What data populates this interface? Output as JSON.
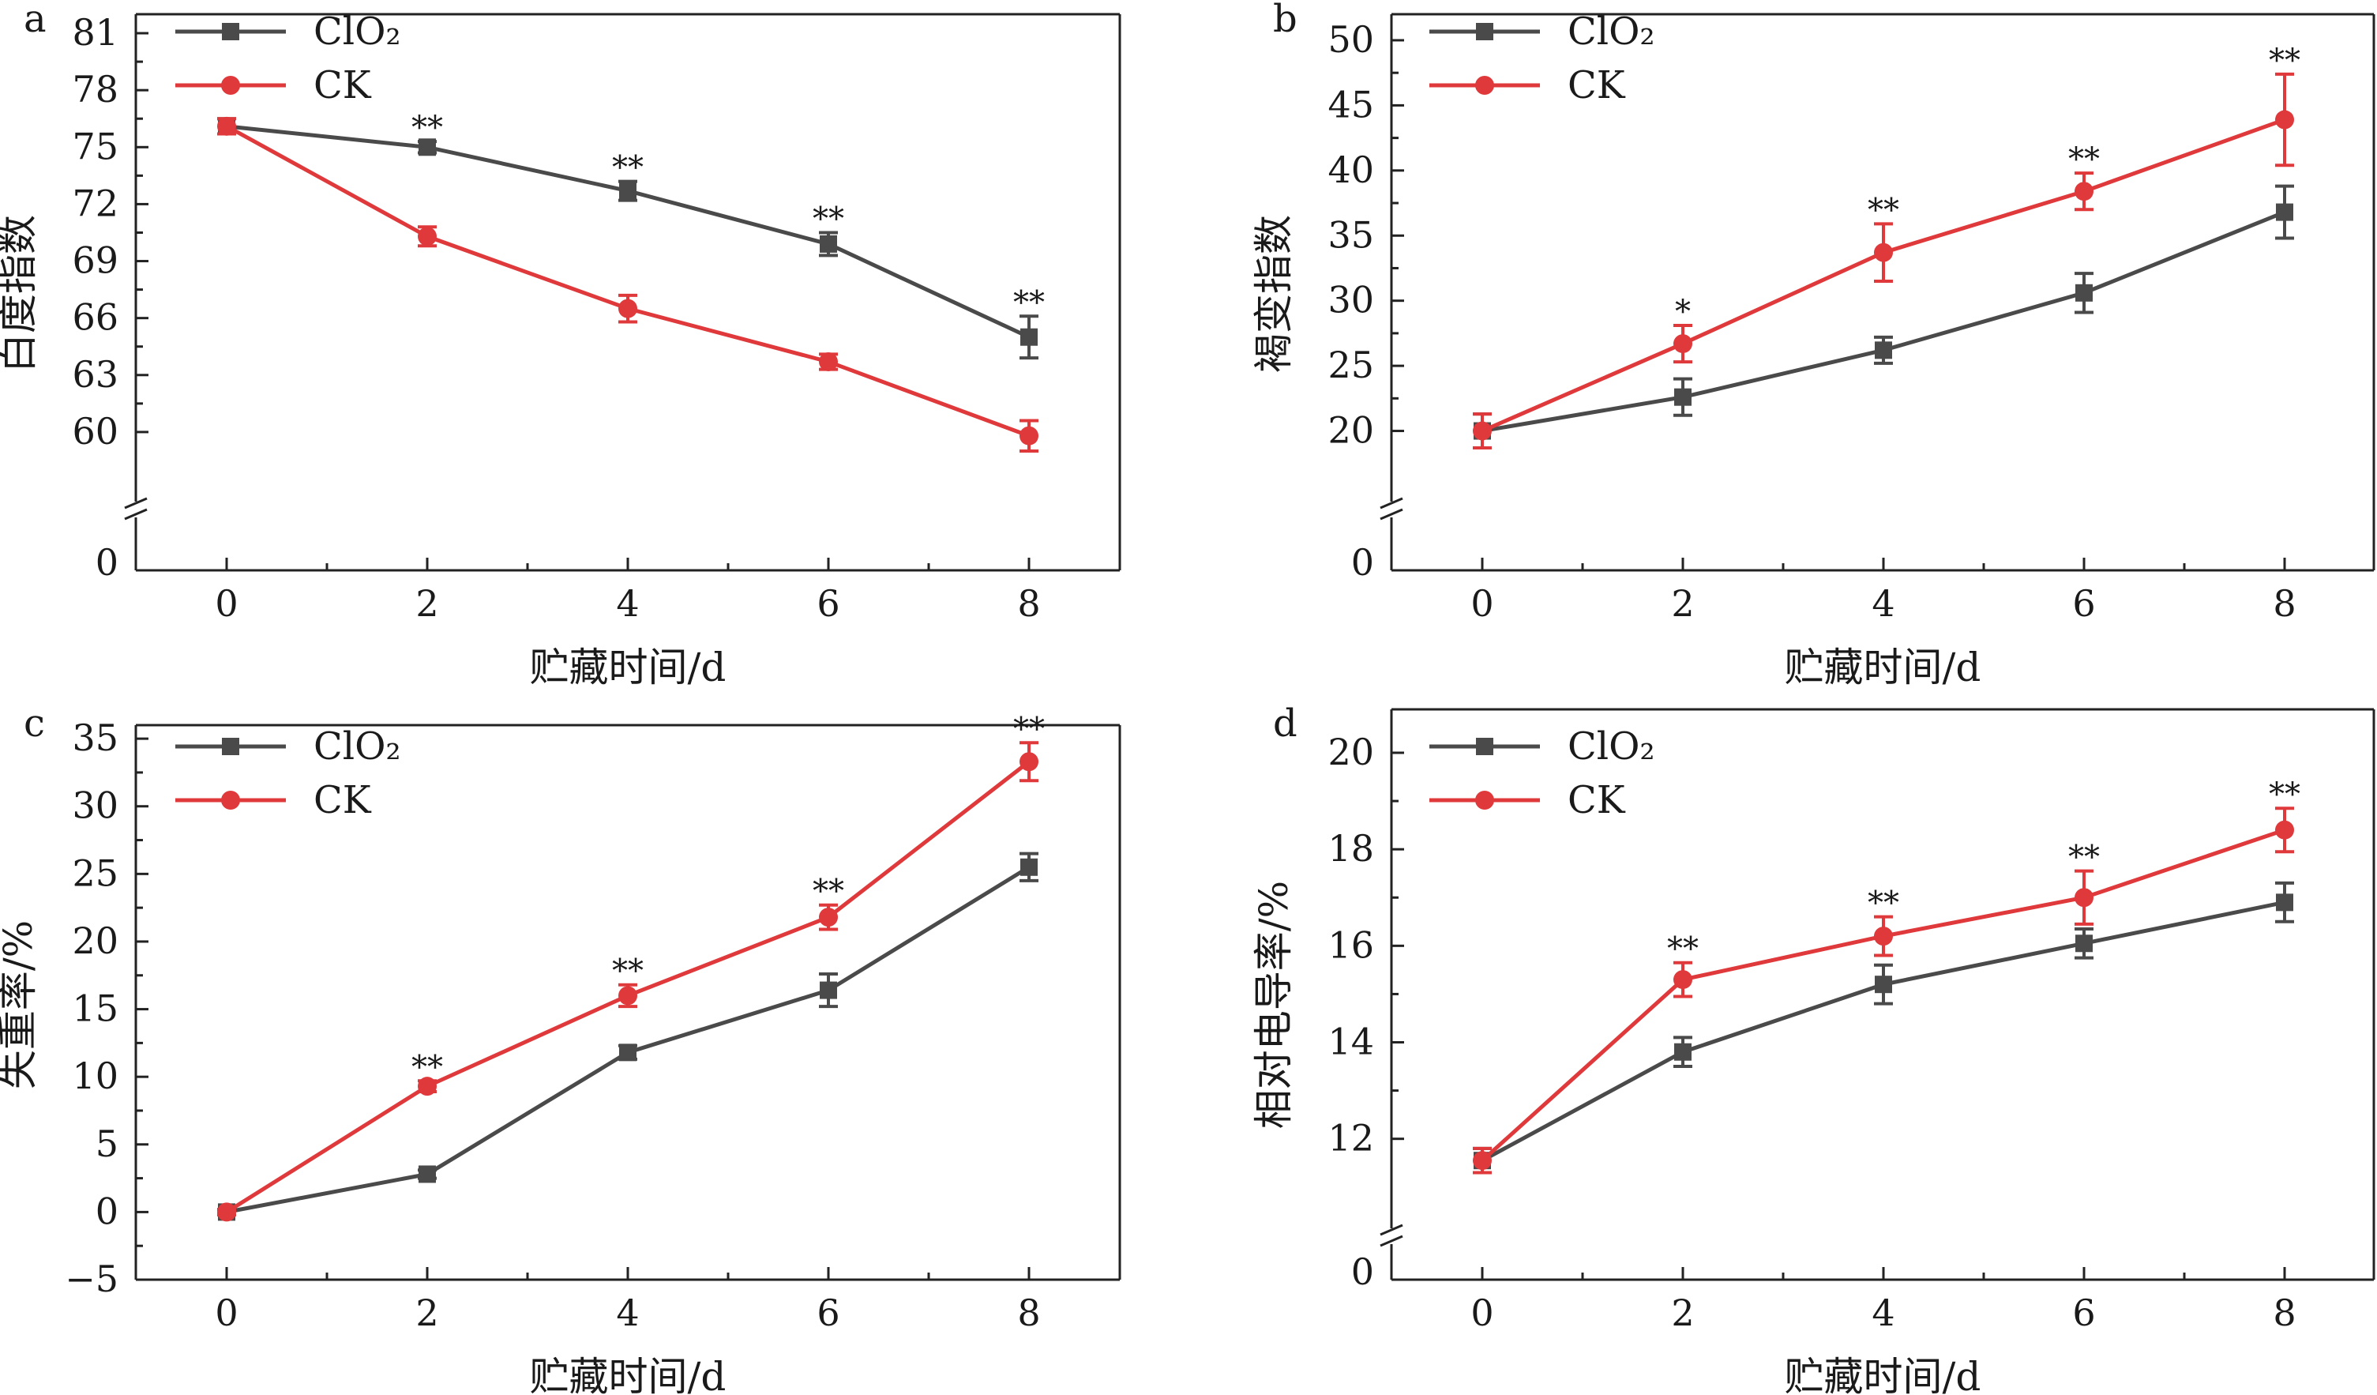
{
  "colors": {
    "ClO2": "#4a4a4a",
    "CK": "#e0393b",
    "axis": "#222222"
  },
  "chart_data": [
    {
      "panel": "a",
      "type": "line",
      "xlabel": "贮藏时间/d",
      "ylabel": "白度指数",
      "x": [
        0,
        2,
        4,
        6,
        8
      ],
      "xticks": [
        "0",
        "2",
        "4",
        "6",
        "8"
      ],
      "ylim": [
        58,
        82
      ],
      "yticks": [
        "60",
        "63",
        "66",
        "69",
        "72",
        "75",
        "78",
        "81"
      ],
      "y_break": true,
      "y_break_label": "0",
      "series": [
        {
          "name": "ClO₂",
          "values": [
            76.1,
            75.0,
            72.7,
            69.9,
            65.0
          ],
          "errors": [
            0.4,
            0.3,
            0.5,
            0.6,
            1.1
          ]
        },
        {
          "name": "CK",
          "values": [
            76.1,
            70.3,
            66.5,
            63.7,
            59.8
          ],
          "errors": [
            0.4,
            0.5,
            0.7,
            0.4,
            0.8
          ]
        }
      ],
      "significance": [
        "",
        "**",
        "**",
        "**",
        "**"
      ],
      "legend": [
        "ClO₂",
        "CK"
      ],
      "legend_position": "top-left"
    },
    {
      "panel": "b",
      "type": "line",
      "xlabel": "贮藏时间/d",
      "ylabel": "褐变指数",
      "x": [
        0,
        2,
        4,
        6,
        8
      ],
      "xticks": [
        "0",
        "2",
        "4",
        "6",
        "8"
      ],
      "ylim": [
        17,
        52
      ],
      "yticks": [
        "20",
        "25",
        "30",
        "35",
        "40",
        "45",
        "50"
      ],
      "y_break": true,
      "y_break_label": "0",
      "series": [
        {
          "name": "ClO₂",
          "values": [
            20.0,
            22.6,
            26.2,
            30.6,
            36.8
          ],
          "errors": [
            1.3,
            1.4,
            1.0,
            1.5,
            2.0
          ]
        },
        {
          "name": "CK",
          "values": [
            20.0,
            26.7,
            33.7,
            38.4,
            43.9
          ],
          "errors": [
            1.3,
            1.4,
            2.2,
            1.4,
            3.5
          ]
        }
      ],
      "significance": [
        "",
        "*",
        "**",
        "**",
        "**"
      ],
      "legend": [
        "ClO₂",
        "CK"
      ],
      "legend_position": "top-left"
    },
    {
      "panel": "c",
      "type": "line",
      "xlabel": "贮藏时间/d",
      "ylabel": "失重率/%",
      "x": [
        0,
        2,
        4,
        6,
        8
      ],
      "xticks": [
        "0",
        "2",
        "4",
        "6",
        "8"
      ],
      "ylim": [
        -5,
        36
      ],
      "yticks": [
        "−5",
        "0",
        "5",
        "10",
        "15",
        "20",
        "25",
        "30",
        "35"
      ],
      "y_break": false,
      "series": [
        {
          "name": "ClO₂",
          "values": [
            0.0,
            2.8,
            11.8,
            16.4,
            25.5
          ],
          "errors": [
            0.2,
            0.3,
            0.5,
            1.2,
            1.0
          ]
        },
        {
          "name": "CK",
          "values": [
            0.0,
            9.3,
            16.0,
            21.8,
            33.3
          ],
          "errors": [
            0.2,
            0.4,
            0.8,
            0.9,
            1.4
          ]
        }
      ],
      "significance": [
        "",
        "**",
        "**",
        "**",
        "**"
      ],
      "legend": [
        "ClO₂",
        "CK"
      ],
      "legend_position": "top-left"
    },
    {
      "panel": "d",
      "type": "line",
      "xlabel": "贮藏时间/d",
      "ylabel": "相对电导率/%",
      "x": [
        0,
        2,
        4,
        6,
        8
      ],
      "xticks": [
        "0",
        "2",
        "4",
        "6",
        "8"
      ],
      "ylim": [
        10.8,
        20.9
      ],
      "yticks": [
        "12",
        "14",
        "16",
        "18",
        "20"
      ],
      "y_break": true,
      "y_break_label": "0",
      "series": [
        {
          "name": "ClO₂",
          "values": [
            11.55,
            13.8,
            15.2,
            16.05,
            16.9
          ],
          "errors": [
            0.25,
            0.3,
            0.4,
            0.3,
            0.4
          ]
        },
        {
          "name": "CK",
          "values": [
            11.55,
            15.3,
            16.2,
            17.0,
            18.4
          ],
          "errors": [
            0.25,
            0.35,
            0.4,
            0.55,
            0.45
          ]
        }
      ],
      "significance": [
        "",
        "**",
        "**",
        "**",
        "**"
      ],
      "legend": [
        "ClO₂",
        "CK"
      ],
      "legend_position": "top-left"
    }
  ]
}
